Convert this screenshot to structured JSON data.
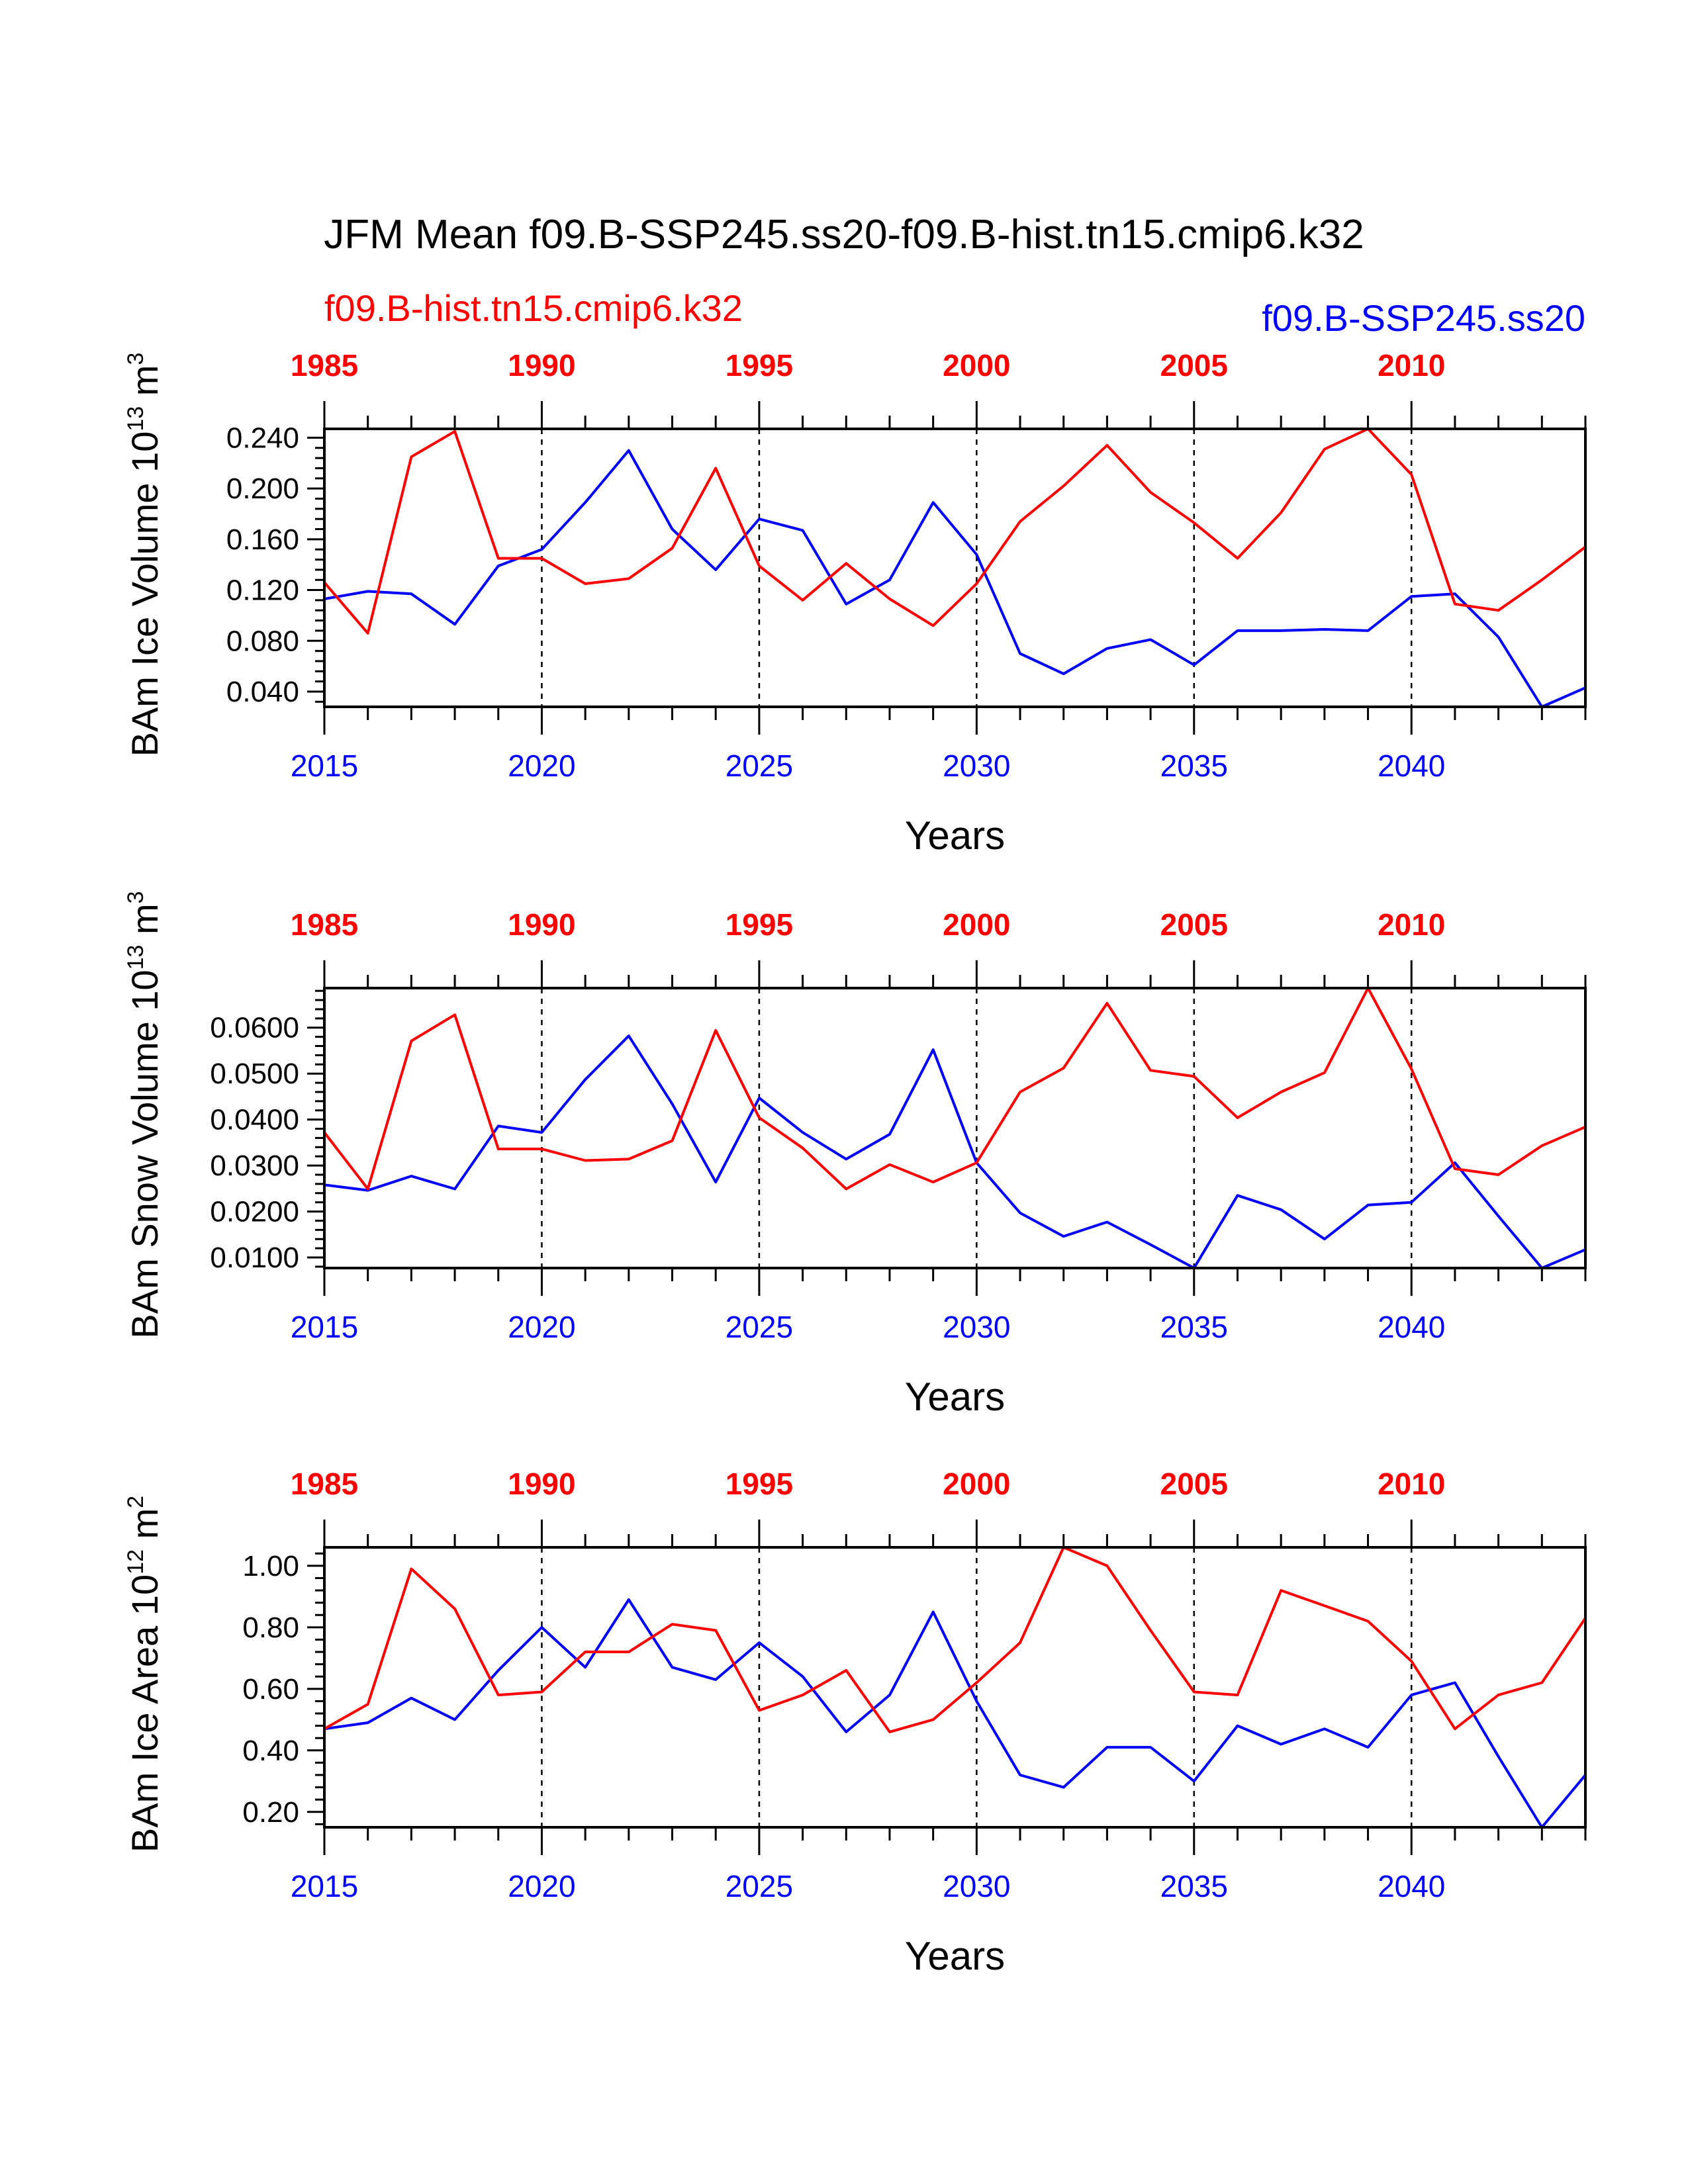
{
  "title": "JFM Mean f09.B-SSP245.ss20-f09.B-hist.tn15.cmip6.k32",
  "legend": {
    "left": "f09.B-hist.tn15.cmip6.k32",
    "right": "f09.B-SSP245.ss20"
  },
  "colors": {
    "hist": "#ff0000",
    "ssp": "#0000ff",
    "axis": "#000000"
  },
  "chart_data": [
    {
      "type": "line",
      "ylabel": {
        "main": "BAm Ice Volume 10",
        "sup": "13",
        "unit": "m",
        "unit_sup": "3"
      },
      "xlabel": "Years",
      "xlim": [
        2015,
        2044
      ],
      "ylim": [
        0.028,
        0.247
      ],
      "y_ticks": [
        0.04,
        0.08,
        0.12,
        0.16,
        0.2,
        0.24
      ],
      "y_tick_labels": [
        "0.040",
        "0.080",
        "0.120",
        "0.160",
        "0.200",
        "0.240"
      ],
      "y_minor_step": 0.008,
      "bottom_ticks": [
        2015,
        2020,
        2025,
        2030,
        2035,
        2040
      ],
      "bottom_tick_labels": [
        "2015",
        "2020",
        "2025",
        "2030",
        "2035",
        "2040"
      ],
      "top_tick_labels": [
        "1985",
        "1990",
        "1995",
        "2000",
        "2005",
        "2010"
      ],
      "x": [
        2015,
        2016,
        2017,
        2018,
        2019,
        2020,
        2021,
        2022,
        2023,
        2024,
        2025,
        2026,
        2027,
        2028,
        2029,
        2030,
        2031,
        2032,
        2033,
        2034,
        2035,
        2036,
        2037,
        2038,
        2039,
        2040,
        2041,
        2042,
        2043,
        2044
      ],
      "series": [
        {
          "name": "f09.B-SSP245.ss20",
          "color": "#0000ff",
          "values": [
            0.113,
            0.119,
            0.117,
            0.093,
            0.139,
            0.152,
            0.189,
            0.23,
            0.168,
            0.136,
            0.176,
            0.167,
            0.109,
            0.128,
            0.189,
            0.148,
            0.07,
            0.054,
            0.074,
            0.081,
            0.061,
            0.088,
            0.088,
            0.089,
            0.088,
            0.115,
            0.117,
            0.083,
            0.028,
            0.043
          ]
        },
        {
          "name": "f09.B-hist.tn15.cmip6.k32",
          "color": "#ff0000",
          "values": [
            0.126,
            0.086,
            0.225,
            0.245,
            0.145,
            0.145,
            0.125,
            0.129,
            0.153,
            0.216,
            0.139,
            0.112,
            0.141,
            0.113,
            0.092,
            0.125,
            0.174,
            0.202,
            0.234,
            0.197,
            0.173,
            0.145,
            0.181,
            0.231,
            0.247,
            0.211,
            0.109,
            0.104,
            0.128,
            0.154
          ]
        }
      ]
    },
    {
      "type": "line",
      "ylabel": {
        "main": "BAm Snow Volume 10",
        "sup": "13",
        "unit": "m",
        "unit_sup": "3"
      },
      "xlabel": "Years",
      "xlim": [
        2015,
        2044
      ],
      "ylim": [
        0.0077,
        0.0686
      ],
      "y_ticks": [
        0.01,
        0.02,
        0.03,
        0.04,
        0.05,
        0.06
      ],
      "y_tick_labels": [
        "0.0100",
        "0.0200",
        "0.0300",
        "0.0400",
        "0.0500",
        "0.0600"
      ],
      "y_minor_step": 0.002,
      "bottom_ticks": [
        2015,
        2020,
        2025,
        2030,
        2035,
        2040
      ],
      "bottom_tick_labels": [
        "2015",
        "2020",
        "2025",
        "2030",
        "2035",
        "2040"
      ],
      "top_tick_labels": [
        "1985",
        "1990",
        "1995",
        "2000",
        "2005",
        "2010"
      ],
      "x": [
        2015,
        2016,
        2017,
        2018,
        2019,
        2020,
        2021,
        2022,
        2023,
        2024,
        2025,
        2026,
        2027,
        2028,
        2029,
        2030,
        2031,
        2032,
        2033,
        2034,
        2035,
        2036,
        2037,
        2038,
        2039,
        2040,
        2041,
        2042,
        2043,
        2044
      ],
      "series": [
        {
          "name": "f09.B-SSP245.ss20",
          "color": "#0000ff",
          "values": [
            0.0258,
            0.0246,
            0.0277,
            0.0249,
            0.0386,
            0.0372,
            0.0487,
            0.0582,
            0.0434,
            0.0264,
            0.0447,
            0.0372,
            0.0314,
            0.0368,
            0.0552,
            0.0306,
            0.0197,
            0.0146,
            0.0177,
            0.0128,
            0.0077,
            0.0235,
            0.0204,
            0.014,
            0.0214,
            0.022,
            0.0306,
            0.019,
            0.0077,
            0.0117
          ]
        },
        {
          "name": "f09.B-hist.tn15.cmip6.k32",
          "color": "#ff0000",
          "values": [
            0.0372,
            0.0249,
            0.0571,
            0.0628,
            0.0336,
            0.0336,
            0.0311,
            0.0314,
            0.0354,
            0.0594,
            0.0404,
            0.0338,
            0.0249,
            0.0302,
            0.0264,
            0.0306,
            0.046,
            0.0512,
            0.0653,
            0.0507,
            0.0494,
            0.0404,
            0.046,
            0.0502,
            0.0686,
            0.051,
            0.0293,
            0.028,
            0.0343,
            0.0384
          ]
        }
      ]
    },
    {
      "type": "line",
      "ylabel": {
        "main": "BAm Ice Area 10",
        "sup": "12",
        "unit": "m",
        "unit_sup": "2"
      },
      "xlabel": "Years",
      "xlim": [
        2015,
        2044
      ],
      "ylim": [
        0.15,
        1.06
      ],
      "y_ticks": [
        0.2,
        0.4,
        0.6,
        0.8,
        1.0
      ],
      "y_tick_labels": [
        "0.20",
        "0.40",
        "0.60",
        "0.80",
        "1.00"
      ],
      "y_minor_step": 0.04,
      "bottom_ticks": [
        2015,
        2020,
        2025,
        2030,
        2035,
        2040
      ],
      "bottom_tick_labels": [
        "2015",
        "2020",
        "2025",
        "2030",
        "2035",
        "2040"
      ],
      "top_tick_labels": [
        "1985",
        "1990",
        "1995",
        "2000",
        "2005",
        "2010"
      ],
      "x": [
        2015,
        2016,
        2017,
        2018,
        2019,
        2020,
        2021,
        2022,
        2023,
        2024,
        2025,
        2026,
        2027,
        2028,
        2029,
        2030,
        2031,
        2032,
        2033,
        2034,
        2035,
        2036,
        2037,
        2038,
        2039,
        2040,
        2041,
        2042,
        2043,
        2044
      ],
      "series": [
        {
          "name": "f09.B-SSP245.ss20",
          "color": "#0000ff",
          "values": [
            0.47,
            0.49,
            0.57,
            0.5,
            0.66,
            0.8,
            0.67,
            0.89,
            0.67,
            0.63,
            0.75,
            0.64,
            0.46,
            0.58,
            0.85,
            0.56,
            0.32,
            0.28,
            0.41,
            0.41,
            0.3,
            0.48,
            0.42,
            0.47,
            0.41,
            0.58,
            0.62,
            0.38,
            0.15,
            0.32
          ]
        },
        {
          "name": "f09.B-hist.tn15.cmip6.k32",
          "color": "#ff0000",
          "values": [
            0.47,
            0.55,
            0.99,
            0.86,
            0.58,
            0.59,
            0.72,
            0.72,
            0.81,
            0.79,
            0.53,
            0.58,
            0.66,
            0.46,
            0.5,
            0.62,
            0.75,
            1.06,
            1.0,
            0.79,
            0.59,
            0.58,
            0.92,
            0.87,
            0.82,
            0.69,
            0.47,
            0.58,
            0.62,
            0.83
          ]
        }
      ]
    }
  ]
}
